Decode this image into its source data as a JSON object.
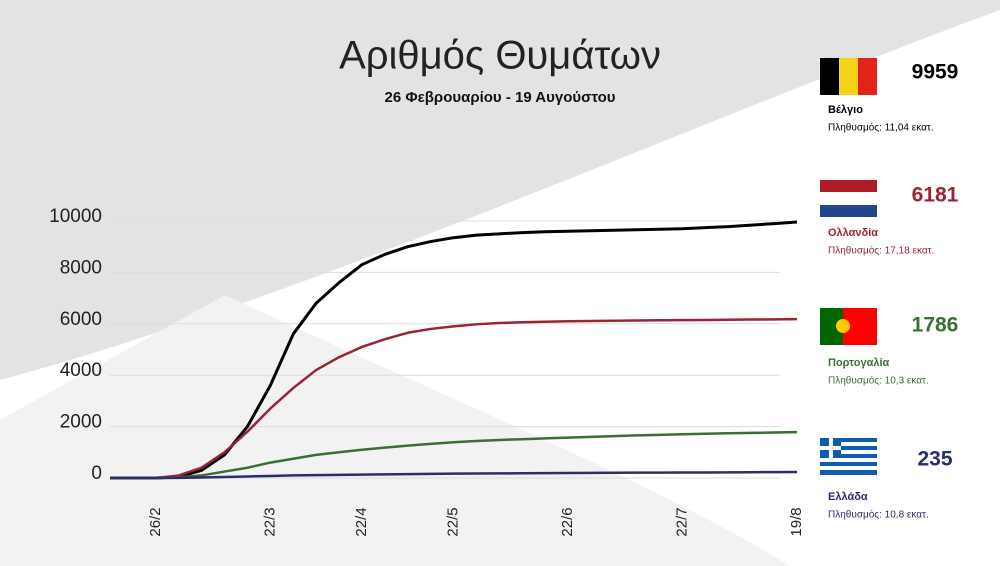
{
  "chart_data": {
    "type": "line",
    "title": "Αριθμός Θυμάτων",
    "subtitle": "26 Φεβρουαρίου - 19 Αυγούστου",
    "categories": [
      null,
      null,
      "26/2",
      null,
      null,
      null,
      null,
      "22/3",
      null,
      null,
      null,
      "22/4",
      null,
      null,
      null,
      "22/5",
      null,
      null,
      null,
      null,
      "22/6",
      null,
      null,
      null,
      null,
      "22/7",
      null,
      null,
      null,
      null,
      "19/8"
    ],
    "ylim": [
      0,
      10000
    ],
    "yticks": [
      0,
      2000,
      4000,
      6000,
      8000,
      10000
    ],
    "grid": true,
    "series": [
      {
        "name": "Βέλγιο",
        "color": "#000000",
        "population": "Πληθυσμός: 11,04 εκατ.",
        "values": [
          0,
          0,
          0,
          50,
          300,
          900,
          2000,
          3600,
          5600,
          6800,
          7600,
          8300,
          8700,
          9000,
          9200,
          9350,
          9450,
          9500,
          9550,
          9580,
          9600,
          9620,
          9640,
          9660,
          9680,
          9700,
          9740,
          9780,
          9840,
          9900,
          9959
        ]
      },
      {
        "name": "Ολλανδία",
        "color": "#9b2335",
        "population": "Πληθυσμός: 17,18 εκατ.",
        "values": [
          0,
          0,
          0,
          100,
          400,
          1000,
          1800,
          2700,
          3500,
          4200,
          4700,
          5100,
          5400,
          5650,
          5800,
          5900,
          5980,
          6030,
          6060,
          6080,
          6100,
          6110,
          6120,
          6130,
          6140,
          6145,
          6150,
          6160,
          6165,
          6170,
          6181
        ]
      },
      {
        "name": "Πορτογαλία",
        "color": "#3a6e35",
        "population": "Πληθυσμός: 10,3 εκατ.",
        "values": [
          0,
          0,
          0,
          30,
          100,
          250,
          400,
          600,
          750,
          900,
          1000,
          1100,
          1180,
          1260,
          1330,
          1390,
          1440,
          1480,
          1510,
          1540,
          1570,
          1600,
          1630,
          1660,
          1680,
          1700,
          1720,
          1740,
          1755,
          1770,
          1786
        ]
      },
      {
        "name": "Ελλάδα",
        "color": "#2b2e6e",
        "population": "Πληθυσμός: 10,8 εκατ.",
        "values": [
          0,
          0,
          0,
          5,
          20,
          40,
          60,
          80,
          100,
          110,
          120,
          130,
          140,
          150,
          160,
          170,
          175,
          180,
          185,
          190,
          195,
          200,
          205,
          208,
          210,
          212,
          216,
          220,
          225,
          230,
          235
        ]
      }
    ]
  }
}
